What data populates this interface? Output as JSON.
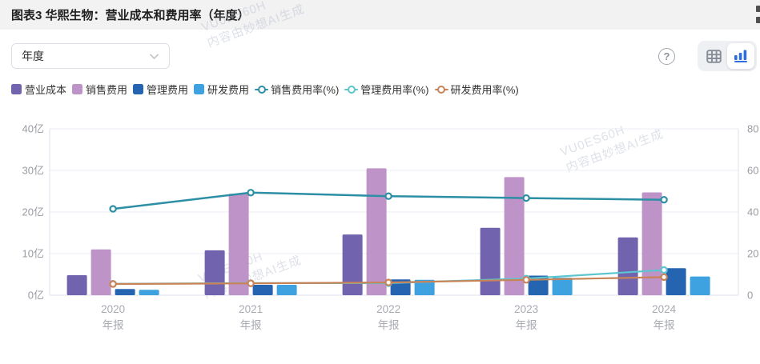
{
  "header": {
    "title": "图表3 华熙生物：营业成本和费用率（年度）"
  },
  "toolbar": {
    "period_dropdown": {
      "value": "年度"
    },
    "help_glyph": "?",
    "view_toggle": {
      "options": [
        "table-view",
        "chart-view"
      ],
      "active": "chart-view"
    },
    "accent_color": "#2F6CDF"
  },
  "watermark": {
    "line1": "VU0ES60H",
    "line2": "内容由妙想AI生成"
  },
  "chart_data": {
    "type": "bar",
    "title": "华熙生物：营业成本和费用率（年度）",
    "categories": [
      "2020",
      "2021",
      "2022",
      "2023",
      "2024"
    ],
    "category_sublabel": "年报",
    "bar_series": [
      {
        "name": "营业成本",
        "color": "#7163AE",
        "unit": "亿",
        "values": [
          4.8,
          10.8,
          14.6,
          16.2,
          13.9
        ]
      },
      {
        "name": "销售费用",
        "color": "#BE94C8",
        "unit": "亿",
        "values": [
          11.0,
          24.4,
          30.5,
          28.4,
          24.7
        ]
      },
      {
        "name": "管理费用",
        "color": "#2564B0",
        "unit": "亿",
        "values": [
          1.5,
          2.5,
          3.8,
          4.7,
          6.5
        ]
      },
      {
        "name": "研发费用",
        "color": "#3DA2DF",
        "unit": "亿",
        "values": [
          1.3,
          2.5,
          3.7,
          4.2,
          4.5
        ]
      }
    ],
    "line_series": [
      {
        "name": "销售费用率(%)",
        "color": "#2C8FA5",
        "values": [
          41.5,
          49.3,
          47.6,
          46.7,
          45.9
        ]
      },
      {
        "name": "管理费用率(%)",
        "color": "#5CC5CF",
        "values": [
          5.5,
          5.8,
          5.8,
          8.0,
          12.1
        ]
      },
      {
        "name": "研发费用率(%)",
        "color": "#C98356",
        "values": [
          5.4,
          5.7,
          6.1,
          7.4,
          8.7
        ]
      }
    ],
    "left_axis": {
      "min": 0,
      "max": 40,
      "step": 10,
      "unit": "亿"
    },
    "right_axis": {
      "min": 0,
      "max": 80,
      "step": 20,
      "unit": "%"
    },
    "grid": true,
    "legend_position": "top"
  }
}
